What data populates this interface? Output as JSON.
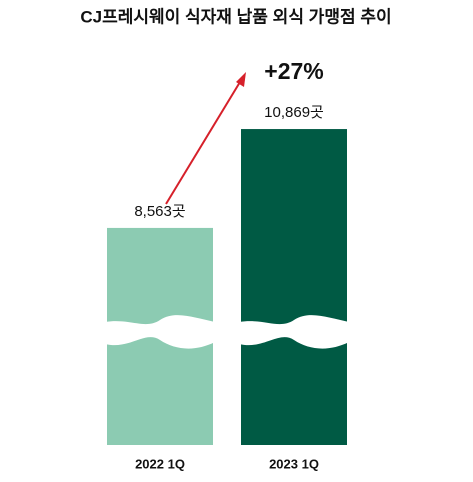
{
  "chart_data": {
    "type": "bar",
    "title": "CJ프레시웨이 식자재 납품 외식 가맹점 추이",
    "categories": [
      "2022 1Q",
      "2023 1Q"
    ],
    "values": [
      8563,
      10869
    ],
    "value_labels": [
      "8,563곳",
      "10,869곳"
    ],
    "colors": [
      "#8ccbb2",
      "#005a44"
    ],
    "annotation": "+27%",
    "ylim": [
      3500,
      11500
    ],
    "broken_axis": true
  }
}
